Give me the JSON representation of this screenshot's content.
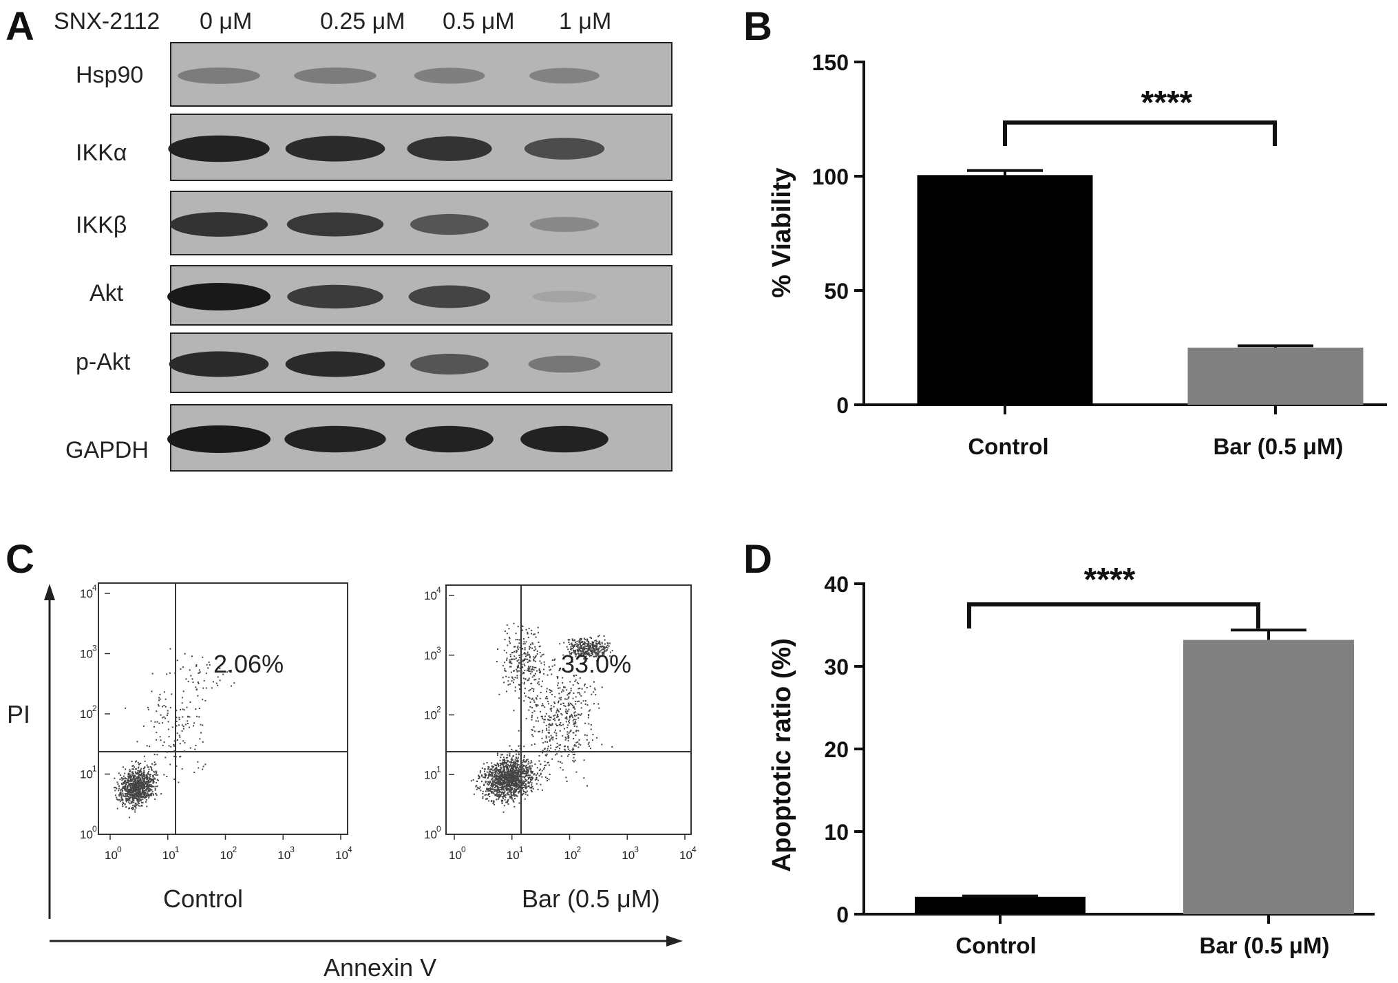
{
  "panels": {
    "a": "A",
    "b": "B",
    "c": "C",
    "d": "D"
  },
  "western_blot": {
    "treatment_label": "SNX-2112",
    "lanes": [
      "0 μM",
      "0.25 μM",
      "0.5 μM",
      "1 μM"
    ],
    "rows": [
      {
        "label": "Hsp90",
        "intensities": [
          0.42,
          0.42,
          0.4,
          0.38
        ]
      },
      {
        "label": "IKKα",
        "intensities": [
          0.95,
          0.9,
          0.85,
          0.7
        ]
      },
      {
        "label": "IKKβ",
        "intensities": [
          0.85,
          0.82,
          0.65,
          0.35
        ]
      },
      {
        "label": "Akt",
        "intensities": [
          1.0,
          0.8,
          0.75,
          0.18
        ]
      },
      {
        "label": "p-Akt",
        "intensities": [
          0.9,
          0.9,
          0.65,
          0.45
        ]
      },
      {
        "label": "GAPDH",
        "intensities": [
          1.0,
          0.95,
          0.95,
          0.95
        ]
      }
    ]
  },
  "flow": {
    "y_label": "PI",
    "x_label": "Annexin V",
    "plots": [
      {
        "name": "Control",
        "percent": "2.06%"
      },
      {
        "name": "Bar (0.5 μM)",
        "percent": "33.0%"
      }
    ],
    "tick_labels": [
      "10",
      "10",
      "10",
      "10",
      "10"
    ],
    "tick_exponents": [
      "0",
      "1",
      "2",
      "3",
      "4"
    ]
  },
  "chart_data": [
    {
      "type": "bar",
      "panel": "B",
      "categories": [
        "Control",
        "Bar (0.5 μM)"
      ],
      "values": [
        100.5,
        25
      ],
      "errors": [
        2,
        0.8
      ],
      "colors": [
        "#000000",
        "#808080"
      ],
      "title": "",
      "xlabel": "",
      "ylabel": "% Viability",
      "ylim": [
        0,
        150
      ],
      "yticks": [
        0,
        50,
        100,
        150
      ],
      "significance": "****"
    },
    {
      "type": "bar",
      "panel": "D",
      "categories": [
        "Control",
        "Bar (0.5 μM)"
      ],
      "values": [
        2.1,
        33.2
      ],
      "errors": [
        0.1,
        1.2
      ],
      "colors": [
        "#000000",
        "#808080"
      ],
      "title": "",
      "xlabel": "",
      "ylabel": "Apoptotic ratio (%)",
      "ylim": [
        0,
        40
      ],
      "yticks": [
        0,
        10,
        20,
        30,
        40
      ],
      "significance": "****"
    }
  ]
}
